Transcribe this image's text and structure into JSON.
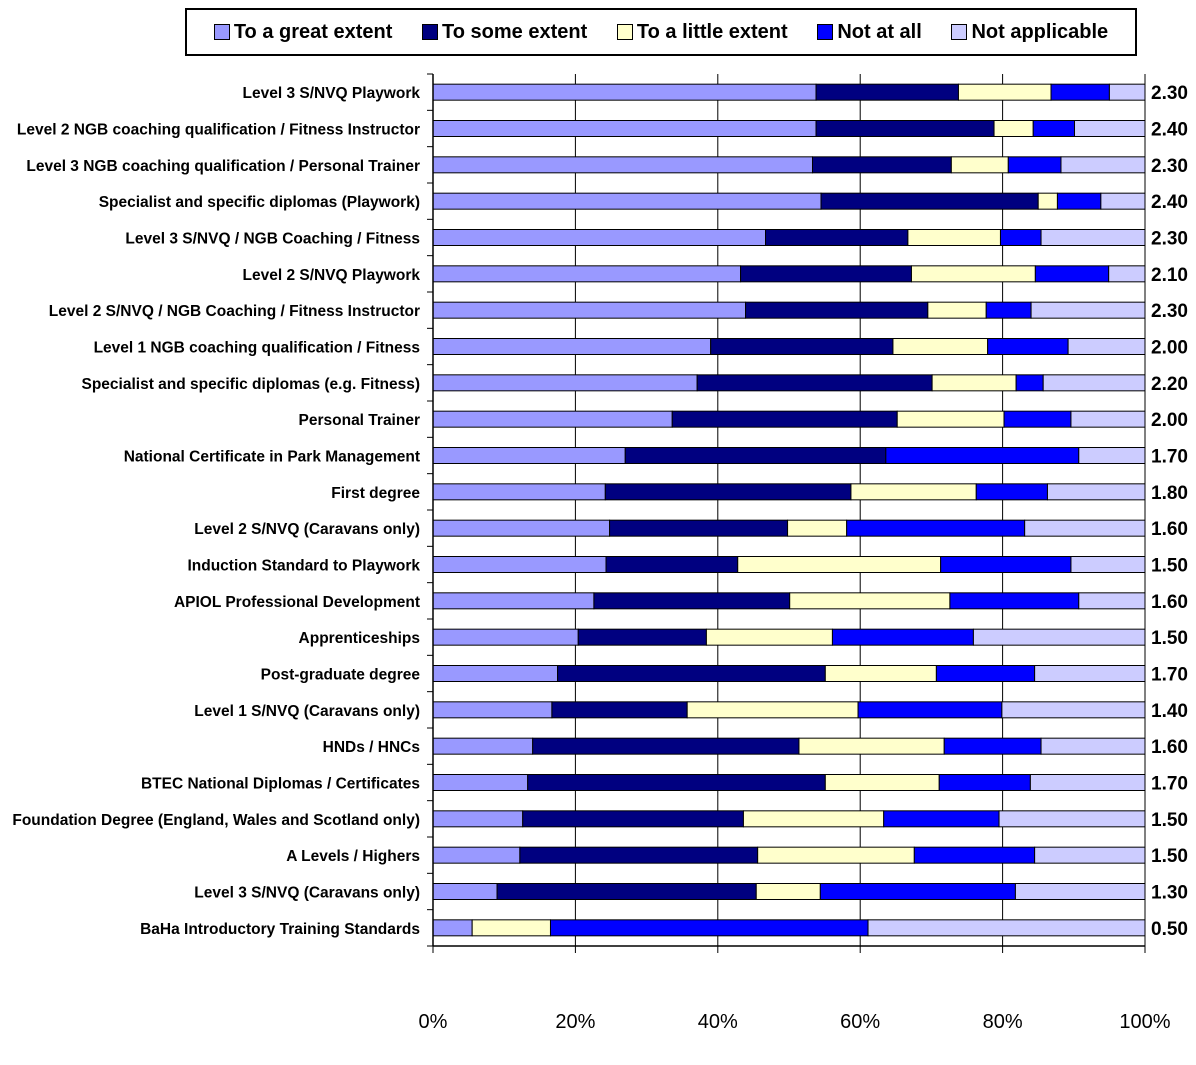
{
  "chart_data": {
    "type": "bar",
    "orientation": "horizontal",
    "stacked": "percent",
    "x_ticks": [
      "0%",
      "20%",
      "40%",
      "60%",
      "80%",
      "100%"
    ],
    "xlim": [
      0,
      100
    ],
    "legend_position": "top",
    "grid": "vertical",
    "categories": [
      "Level 3 S/NVQ Playwork",
      "Level 2 NGB coaching qualification / Fitness Instructor",
      "Level 3 NGB coaching qualification / Personal Trainer",
      "Specialist and specific diplomas (Playwork)",
      "Level 3 S/NVQ / NGB Coaching / Fitness",
      "Level 2 S/NVQ Playwork",
      "Level 2 S/NVQ / NGB Coaching / Fitness Instructor",
      "Level 1 NGB coaching qualification / Fitness",
      "Specialist and specific diplomas (e.g. Fitness)",
      "Personal Trainer",
      "National Certificate in Park Management",
      "First degree",
      "Level 2 S/NVQ (Caravans only)",
      "Induction Standard to Playwork",
      "APIOL Professional Development",
      "Apprenticeships",
      "Post-graduate degree",
      "Level 1 S/NVQ (Caravans only)",
      "HNDs / HNCs",
      "BTEC National Diplomas / Certificates",
      "Foundation Degree (England, Wales and Scotland only)",
      "A Levels / Highers",
      "Level 3 S/NVQ (Caravans only)",
      "BaHa Introductory Training Standards"
    ],
    "scores": [
      "2.30",
      "2.40",
      "2.30",
      "2.40",
      "2.30",
      "2.10",
      "2.30",
      "2.00",
      "2.20",
      "2.00",
      "1.70",
      "1.80",
      "1.60",
      "1.50",
      "1.60",
      "1.50",
      "1.70",
      "1.40",
      "1.60",
      "1.70",
      "1.50",
      "1.50",
      "1.30",
      "0.50"
    ],
    "series": [
      {
        "name": "To a great extent",
        "color": "#9999ff",
        "values": [
          53.8,
          53.8,
          53.3,
          54.5,
          46.7,
          43.2,
          43.9,
          39.0,
          37.1,
          33.6,
          27.0,
          24.2,
          24.8,
          24.3,
          22.6,
          20.4,
          17.5,
          16.7,
          14.0,
          13.3,
          12.6,
          12.2,
          9.0,
          5.5
        ]
      },
      {
        "name": "To some extent",
        "color": "#000080",
        "values": [
          20.0,
          25.0,
          19.5,
          30.5,
          20.0,
          24.0,
          25.6,
          25.6,
          33.0,
          31.6,
          36.6,
          34.5,
          25.0,
          18.5,
          27.5,
          18.0,
          37.6,
          19.0,
          37.4,
          41.8,
          31.0,
          33.4,
          36.4,
          0
        ]
      },
      {
        "name": "To a little extent",
        "color": "#ffffcc",
        "values": [
          13.0,
          5.5,
          8.0,
          2.7,
          13.0,
          17.4,
          8.2,
          13.3,
          11.8,
          15.0,
          0,
          17.6,
          8.3,
          28.5,
          22.5,
          17.7,
          15.6,
          24.0,
          20.4,
          16.0,
          19.7,
          22.0,
          9.0,
          11.0
        ]
      },
      {
        "name": "Not at all",
        "color": "#0000ff",
        "values": [
          8.2,
          5.8,
          7.4,
          6.1,
          5.7,
          10.3,
          6.3,
          11.3,
          3.8,
          9.4,
          27.1,
          10.0,
          25.0,
          18.3,
          18.1,
          19.8,
          13.8,
          20.2,
          13.6,
          12.8,
          16.2,
          16.9,
          27.4,
          44.6
        ]
      },
      {
        "name": "Not applicable",
        "color": "#ccccff",
        "values": [
          5.0,
          9.9,
          11.8,
          6.2,
          14.6,
          5.1,
          16.0,
          10.8,
          14.3,
          10.4,
          9.3,
          13.7,
          16.9,
          10.4,
          9.3,
          24.1,
          15.5,
          20.1,
          14.6,
          16.1,
          20.5,
          15.5,
          18.2,
          38.9
        ]
      }
    ]
  }
}
